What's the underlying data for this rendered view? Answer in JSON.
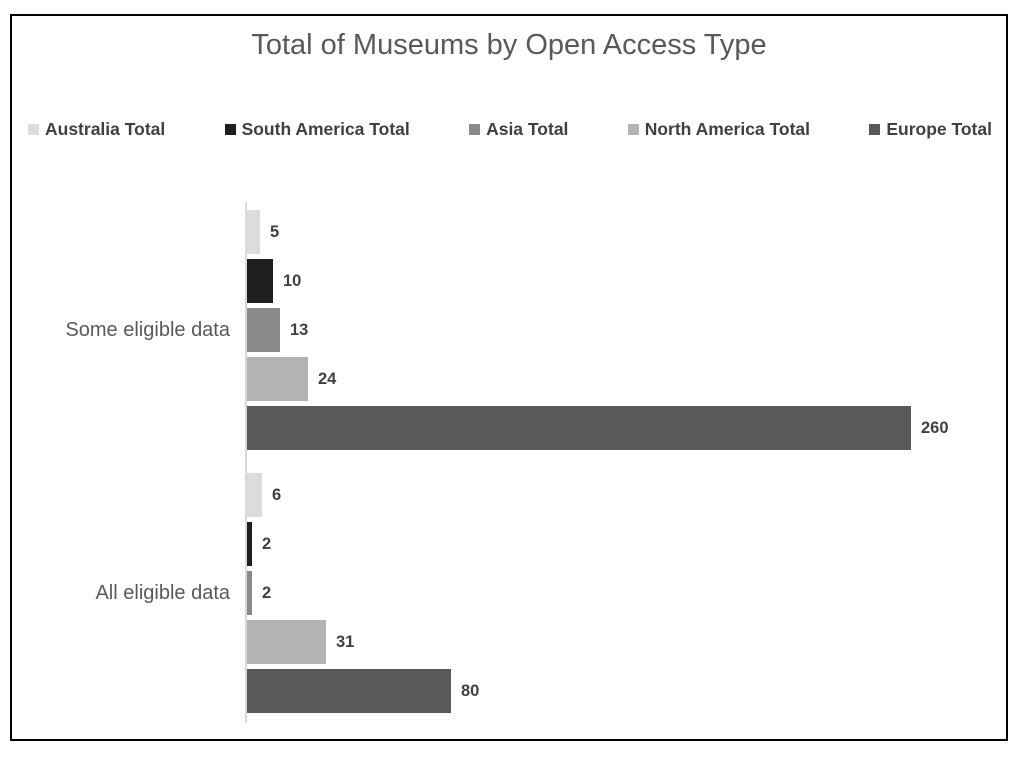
{
  "chart_data": {
    "type": "bar",
    "orientation": "horizontal",
    "title": "Total of Museums by Open Access Type",
    "categories": [
      "Some eligible data",
      "All eligible data"
    ],
    "series": [
      {
        "name": "Australia Total",
        "color": "#dcdcdc",
        "values": [
          5,
          6
        ]
      },
      {
        "name": "South America Total",
        "color": "#1f1f1f",
        "values": [
          10,
          2
        ]
      },
      {
        "name": "Asia Total",
        "color": "#8a8a8a",
        "values": [
          13,
          2
        ]
      },
      {
        "name": "North America Total",
        "color": "#b3b3b3",
        "values": [
          24,
          31
        ]
      },
      {
        "name": "Europe Total",
        "color": "#595959",
        "values": [
          260,
          80
        ]
      }
    ],
    "xlim": [
      0,
      300
    ],
    "value_labels": true,
    "legend_position": "top",
    "grid": false,
    "xlabel": "",
    "ylabel": ""
  },
  "colors": {
    "title_text": "#595959",
    "category_text": "#595959",
    "value_label_text": "#404040",
    "legend_text": "#404040",
    "axis_line": "#d9d9d9",
    "frame_border": "#000000",
    "background": "#ffffff"
  }
}
